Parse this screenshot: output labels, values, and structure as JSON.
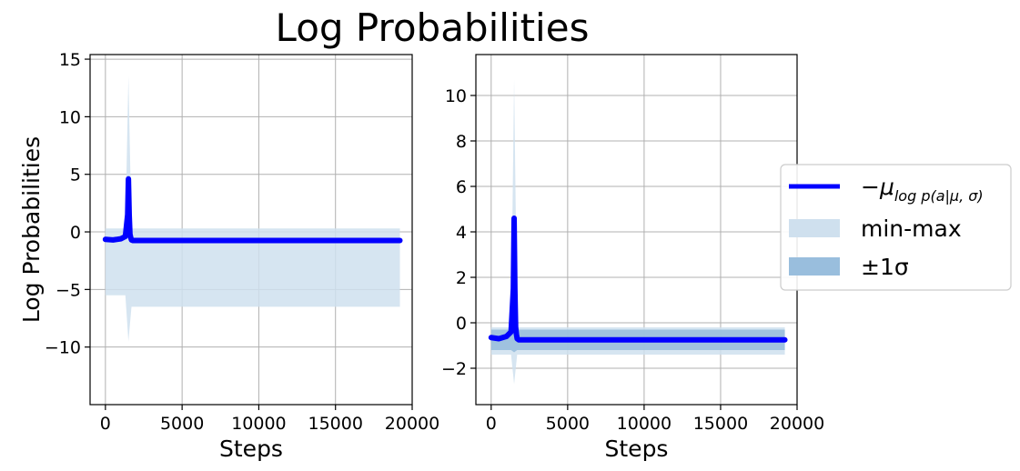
{
  "chart_data": [
    {
      "type": "line",
      "title": "Log Probabilities",
      "xlabel": "Steps",
      "ylabel": "Log Probabilities",
      "xlim": [
        -1000,
        20000
      ],
      "ylim": [
        -15,
        15.4
      ],
      "xticks": [
        0,
        5000,
        10000,
        15000,
        20000
      ],
      "xtick_labels": [
        "0",
        "5000",
        "10000",
        "15000",
        "20000"
      ],
      "yticks": [
        -10,
        -5,
        0,
        5,
        10,
        15
      ],
      "ytick_labels": [
        "−10",
        "−5",
        "0",
        "5",
        "10",
        "15"
      ],
      "grid": true,
      "series": [
        {
          "name": "−μ log p(a|μ,σ)",
          "kind": "mean",
          "x": [
            0,
            500,
            1000,
            1300,
            1450,
            1500,
            1550,
            1600,
            1650,
            1700,
            1800,
            2000,
            2500,
            5000,
            10000,
            15000,
            19200
          ],
          "y": [
            -0.65,
            -0.7,
            -0.6,
            -0.4,
            1.5,
            4.6,
            1.5,
            -0.2,
            -0.5,
            -0.7,
            -0.75,
            -0.75,
            -0.75,
            -0.75,
            -0.75,
            -0.75,
            -0.75
          ]
        },
        {
          "name": "min-max",
          "kind": "band",
          "x": [
            0,
            1300,
            1500,
            1700,
            2500,
            5000,
            10000,
            15000,
            19200
          ],
          "lower": [
            -5.5,
            -5.5,
            -9.5,
            -6.5,
            -6.5,
            -6.5,
            -6.5,
            -6.5,
            -6.5
          ],
          "upper": [
            0.3,
            0.3,
            13.5,
            0.3,
            0.3,
            0.3,
            0.3,
            0.3,
            0.3
          ]
        }
      ]
    },
    {
      "type": "line",
      "xlabel": "Steps",
      "ylabel": "",
      "xlim": [
        -1000,
        20000
      ],
      "ylim": [
        -3.6,
        11.8
      ],
      "xticks": [
        0,
        5000,
        10000,
        15000,
        20000
      ],
      "xtick_labels": [
        "0",
        "5000",
        "10000",
        "15000",
        "20000"
      ],
      "yticks": [
        -2,
        0,
        2,
        4,
        6,
        8,
        10
      ],
      "ytick_labels": [
        "−2",
        "0",
        "2",
        "4",
        "6",
        "8",
        "10"
      ],
      "grid": true,
      "series": [
        {
          "name": "−μ log p(a|μ,σ)",
          "kind": "mean",
          "x": [
            0,
            500,
            1000,
            1300,
            1450,
            1500,
            1550,
            1600,
            1650,
            1700,
            1800,
            2000,
            2500,
            5000,
            10000,
            15000,
            19200
          ],
          "y": [
            -0.65,
            -0.7,
            -0.6,
            -0.4,
            1.5,
            4.6,
            1.5,
            -0.2,
            -0.5,
            -0.7,
            -0.75,
            -0.75,
            -0.75,
            -0.75,
            -0.75,
            -0.75,
            -0.75
          ]
        },
        {
          "name": "min-max",
          "kind": "band",
          "x": [
            0,
            1300,
            1500,
            1700,
            2500,
            5000,
            10000,
            15000,
            19200
          ],
          "lower": [
            -1.4,
            -1.4,
            -2.7,
            -1.4,
            -1.4,
            -1.4,
            -1.4,
            -1.4,
            -1.4
          ],
          "upper": [
            -0.2,
            -0.2,
            10.7,
            -0.2,
            -0.2,
            -0.2,
            -0.2,
            -0.2,
            -0.2
          ]
        },
        {
          "name": "±1σ",
          "kind": "band",
          "x": [
            0,
            1300,
            1500,
            1700,
            2500,
            5000,
            10000,
            15000,
            19200
          ],
          "lower": [
            -1.2,
            -1.2,
            -1.3,
            -1.2,
            -1.2,
            -1.2,
            -1.2,
            -1.2,
            -1.2
          ],
          "upper": [
            -0.3,
            -0.3,
            1.6,
            -0.3,
            -0.3,
            -0.3,
            -0.3,
            -0.3,
            -0.3
          ]
        }
      ]
    }
  ],
  "legend": {
    "placement": "right",
    "items": [
      {
        "label": "−μ",
        "subscript": "log p(a|μ, σ)",
        "kind": "line",
        "color": "#0000ff"
      },
      {
        "label": "min-max",
        "kind": "band",
        "color": "#cfe0ee"
      },
      {
        "label": "±1σ",
        "kind": "band",
        "color": "#99bedd"
      }
    ]
  },
  "colors": {
    "mean_line": "#0000ff",
    "minmax_band": "#cfe0ee",
    "std_band": "#99bedd",
    "grid": "#b0b0b0"
  }
}
